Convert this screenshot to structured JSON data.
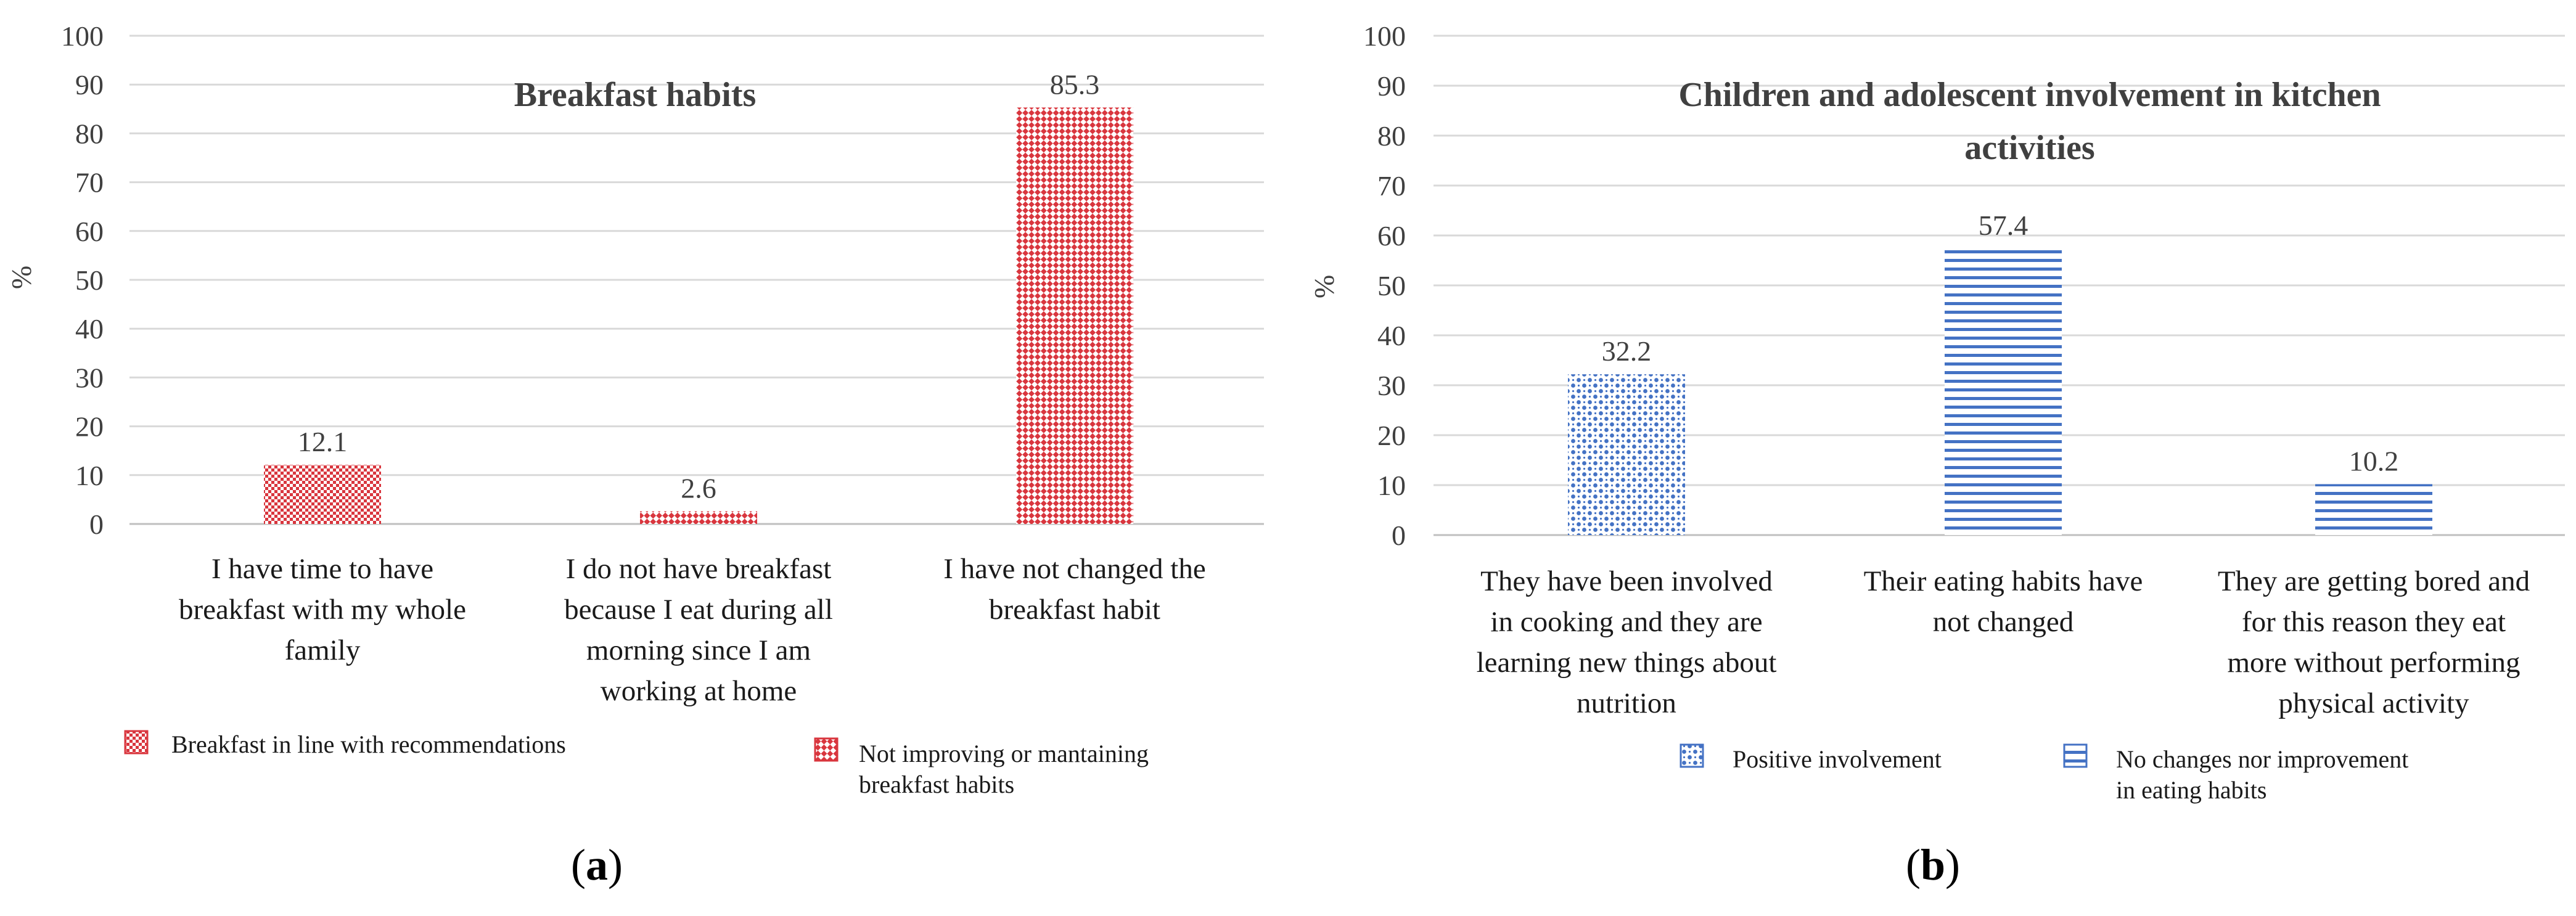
{
  "chart_data": [
    {
      "type": "bar",
      "title": "Breakfast habits",
      "ylabel": "%",
      "xlabel": "",
      "ylim": [
        0,
        100
      ],
      "yticks": [
        "0",
        "10",
        "20",
        "30",
        "40",
        "50",
        "60",
        "70",
        "80",
        "90",
        "100"
      ],
      "grid": true,
      "categories": [
        [
          "I have time to have",
          "breakfast with my whole",
          "family"
        ],
        [
          "I do not have breakfast",
          "because I eat during all",
          "morning since I am",
          "working at home"
        ],
        [
          "I have not changed the",
          "breakfast habit"
        ]
      ],
      "values": [
        12.1,
        2.6,
        85.3
      ],
      "value_labels": [
        "12.1",
        "2.6",
        "85.3"
      ],
      "bar_series": [
        "Breakfast in line with recommendations",
        "Not improving or mantaining breakfast habits",
        "Not improving or mantaining breakfast habits"
      ],
      "legend": [
        {
          "label": [
            "Breakfast in line with recommendations"
          ],
          "pattern": "dots-fine"
        },
        {
          "label": [
            "Not improving or mantaining",
            "breakfast habits"
          ],
          "pattern": "diag-check"
        }
      ],
      "color": "#d9363e",
      "panel_label": {
        "open": "(",
        "letter": "a",
        "close": ")"
      }
    },
    {
      "type": "bar",
      "title": [
        "Children and adolescent involvement in kitchen",
        "activities"
      ],
      "ylabel": "%",
      "xlabel": "",
      "ylim": [
        0,
        100
      ],
      "yticks": [
        "0",
        "10",
        "20",
        "30",
        "40",
        "50",
        "60",
        "70",
        "80",
        "90",
        "100"
      ],
      "grid": true,
      "categories": [
        [
          "They have been involved",
          "in cooking and they are",
          "learning new things about",
          "nutrition"
        ],
        [
          "Their eating habits have",
          "not changed"
        ],
        [
          "They are getting bored and",
          "for this reason they eat",
          "more without performing",
          "physical activity"
        ]
      ],
      "values": [
        32.2,
        57.4,
        10.2
      ],
      "value_labels": [
        "32.2",
        "57.4",
        "10.2"
      ],
      "bar_series": [
        "Positive involvement",
        "No changes nor improvement in eating habits",
        "No changes nor improvement in eating habits"
      ],
      "legend": [
        {
          "label": [
            "Positive involvement"
          ],
          "pattern": "dots-coarse"
        },
        {
          "label": [
            "No changes nor improvement",
            "in eating habits"
          ],
          "pattern": "h-lines"
        }
      ],
      "color": "#4472c4",
      "panel_label": {
        "open": "(",
        "letter": "b",
        "close": ")"
      }
    }
  ]
}
